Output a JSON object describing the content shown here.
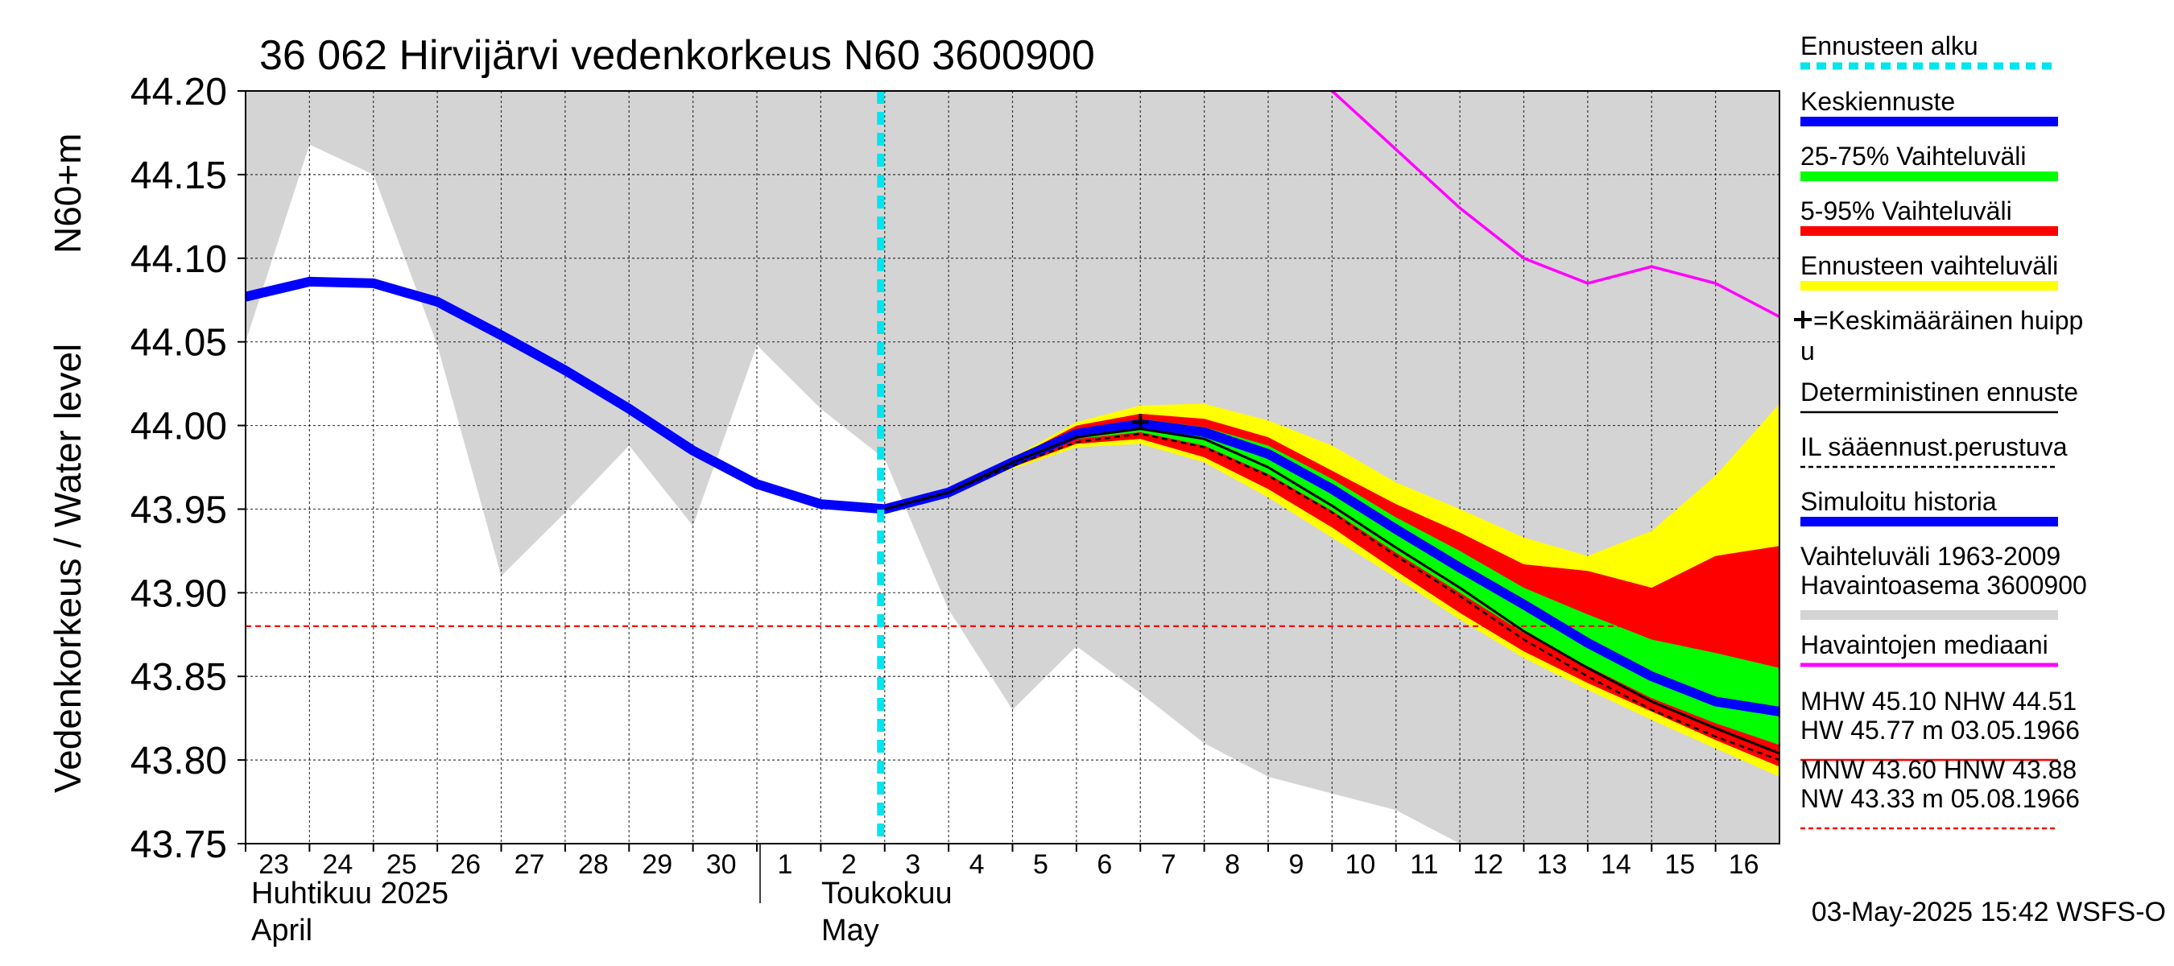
{
  "chart_data": {
    "type": "area",
    "title": "36 062 Hirvijärvi vedenkorkeus N60 3600900",
    "ylabel": "Vedenkorkeus / Water level",
    "yunit": "N60+m",
    "ylim": [
      43.75,
      44.2
    ],
    "y_ticks": [
      "44.20",
      "44.15",
      "44.10",
      "44.05",
      "44.00",
      "43.95",
      "43.90",
      "43.85",
      "43.80",
      "43.75"
    ],
    "x_ticks": [
      "23",
      "24",
      "25",
      "26",
      "27",
      "28",
      "29",
      "30",
      "1",
      "2",
      "3",
      "4",
      "5",
      "6",
      "7",
      "8",
      "9",
      "10",
      "11",
      "12",
      "13",
      "14",
      "15",
      "16"
    ],
    "month_labels": [
      {
        "fi": "Huhtikuu  2025",
        "en": "April"
      },
      {
        "fi": "Toukokuu",
        "en": "May"
      }
    ],
    "x": [
      "2025-04-23",
      "2025-04-24",
      "2025-04-25",
      "2025-04-26",
      "2025-04-27",
      "2025-04-28",
      "2025-04-29",
      "2025-04-30",
      "2025-05-01",
      "2025-05-02",
      "2025-05-03",
      "2025-05-04",
      "2025-05-05",
      "2025-05-06",
      "2025-05-07",
      "2025-05-08",
      "2025-05-09",
      "2025-05-10",
      "2025-05-11",
      "2025-05-12",
      "2025-05-13",
      "2025-05-14",
      "2025-05-15",
      "2025-05-16",
      "2025-05-17"
    ],
    "forecast_start": "2025-05-03",
    "historical_range": {
      "name": "Vaihteluväli 1963-2009 Havaintoasema 3600900",
      "color": "#d4d4d4",
      "upper": [
        44.2,
        44.2,
        44.2,
        44.2,
        44.2,
        44.2,
        44.2,
        44.2,
        44.2,
        44.2,
        44.2,
        44.2,
        44.2,
        44.2,
        44.2,
        44.2,
        44.2,
        44.2,
        44.2,
        44.2,
        44.2,
        44.2,
        44.2,
        44.2,
        44.2
      ],
      "lower": [
        44.05,
        44.168,
        44.15,
        44.048,
        43.91,
        43.948,
        43.988,
        43.94,
        44.048,
        44.01,
        43.98,
        43.89,
        43.83,
        43.868,
        43.84,
        43.81,
        43.79,
        43.78,
        43.77,
        43.75,
        43.75,
        43.75,
        43.75,
        43.75,
        43.75
      ]
    },
    "series": [
      {
        "name": "Simuloitu historia",
        "color": "#0000ff",
        "values": [
          44.077,
          44.086,
          44.085,
          44.074,
          44.054,
          44.033,
          44.01,
          43.985,
          43.965,
          43.953,
          43.95,
          43.96,
          43.978,
          43.995,
          44.001,
          43.996,
          43.983,
          43.962,
          43.938,
          43.915,
          43.893,
          43.87,
          43.85,
          43.835,
          43.829
        ]
      },
      {
        "name": "Keskiennuste",
        "color": "#0000ff",
        "values": [
          null,
          null,
          null,
          null,
          null,
          null,
          null,
          null,
          null,
          null,
          43.95,
          43.96,
          43.978,
          43.995,
          44.001,
          43.996,
          43.983,
          43.962,
          43.938,
          43.915,
          43.893,
          43.87,
          43.85,
          43.835,
          43.829
        ]
      },
      {
        "name": "Havaintojen mediaani",
        "color": "#ff00ff",
        "values": [
          null,
          null,
          null,
          null,
          null,
          null,
          null,
          null,
          null,
          null,
          null,
          null,
          null,
          null,
          null,
          null,
          null,
          44.2,
          44.165,
          44.13,
          44.1,
          44.085,
          44.095,
          44.085,
          44.065
        ]
      },
      {
        "name": "Deterministinen ennuste",
        "color": "#000000",
        "values": [
          null,
          null,
          null,
          null,
          null,
          null,
          null,
          null,
          null,
          null,
          43.95,
          43.96,
          43.978,
          43.993,
          43.998,
          43.992,
          43.975,
          43.952,
          43.927,
          43.903,
          43.877,
          43.855,
          43.835,
          43.819,
          43.804
        ]
      },
      {
        "name": "IL sääennust.perustuva",
        "color": "#000000",
        "dash": true,
        "values": [
          null,
          null,
          null,
          null,
          null,
          null,
          null,
          null,
          null,
          null,
          43.95,
          43.96,
          43.976,
          43.99,
          43.995,
          43.987,
          43.97,
          43.948,
          43.922,
          43.898,
          43.872,
          43.85,
          43.83,
          43.814,
          43.8
        ]
      }
    ],
    "bands": [
      {
        "name": "Ennusteen vaihteluväli",
        "color": "#ffff00",
        "upper": [
          null,
          null,
          null,
          null,
          null,
          null,
          null,
          null,
          null,
          null,
          43.95,
          43.961,
          43.981,
          44.002,
          44.012,
          44.013,
          44.003,
          43.988,
          43.966,
          43.95,
          43.933,
          43.922,
          43.937,
          43.97,
          44.013
        ],
        "lower": [
          null,
          null,
          null,
          null,
          null,
          null,
          null,
          null,
          null,
          null,
          43.95,
          43.959,
          43.974,
          43.987,
          43.989,
          43.978,
          43.957,
          43.933,
          43.909,
          43.884,
          43.861,
          43.842,
          43.824,
          43.807,
          43.79
        ]
      },
      {
        "name": "5-95% Vaihteluväli",
        "color": "#ff0000",
        "upper": [
          null,
          null,
          null,
          null,
          null,
          null,
          null,
          null,
          null,
          null,
          43.95,
          43.961,
          43.98,
          44.0,
          44.007,
          44.004,
          43.993,
          43.973,
          43.953,
          43.936,
          43.917,
          43.913,
          43.903,
          43.922,
          43.928
        ],
        "lower": [
          null,
          null,
          null,
          null,
          null,
          null,
          null,
          null,
          null,
          null,
          43.95,
          43.959,
          43.975,
          43.989,
          43.992,
          43.981,
          43.962,
          43.939,
          43.913,
          43.888,
          43.865,
          43.846,
          43.829,
          43.812,
          43.796
        ]
      },
      {
        "name": "25-75% Vaihteluväli",
        "color": "#00ff00",
        "upper": [
          null,
          null,
          null,
          null,
          null,
          null,
          null,
          null,
          null,
          null,
          43.95,
          43.96,
          43.979,
          43.997,
          44.004,
          43.999,
          43.988,
          43.968,
          43.945,
          43.925,
          43.903,
          43.887,
          43.872,
          43.864,
          43.855
        ],
        "lower": [
          null,
          null,
          null,
          null,
          null,
          null,
          null,
          null,
          null,
          null,
          43.95,
          43.959,
          43.976,
          43.992,
          43.996,
          43.988,
          43.971,
          43.949,
          43.924,
          43.9,
          43.876,
          43.856,
          43.837,
          43.822,
          43.809
        ]
      }
    ],
    "reference_lines": [
      {
        "name": "MNW 43.60 HNW 43.88",
        "value": 43.88,
        "color": "#ff0000",
        "dash": true
      }
    ],
    "legend": {
      "position": "right",
      "items": [
        {
          "label": "Ennusteen alku",
          "color": "#00e5ee",
          "style": "dashed-thick"
        },
        {
          "label": "Keskiennuste",
          "color": "#0000ff",
          "style": "thick"
        },
        {
          "label": "25-75% Vaihteluväli",
          "color": "#00ff00",
          "style": "thick"
        },
        {
          "label": "5-95% Vaihteluväli",
          "color": "#ff0000",
          "style": "thick"
        },
        {
          "label": "Ennusteen vaihteluväli",
          "color": "#ffff00",
          "style": "thick"
        },
        {
          "label": "=Keskimääräinen huipp",
          "label2": "u",
          "color": "#000000",
          "style": "plus"
        },
        {
          "label": "Deterministinen ennuste",
          "color": "#000000",
          "style": "thin"
        },
        {
          "label": "IL sääennust.perustuva",
          "color": "#000000",
          "style": "dashed-thin"
        },
        {
          "label": "Simuloitu historia",
          "color": "#0000ff",
          "style": "thick"
        },
        {
          "label": "Vaihteluväli 1963-2009",
          "label2": " Havaintoasema 3600900",
          "color": "#d4d4d4",
          "style": "thick"
        },
        {
          "label": "Havaintojen mediaani",
          "color": "#ff00ff",
          "style": "medium"
        },
        {
          "label": "MHW  45.10 NHW  44.51",
          "label2": "HW  45.77 m 03.05.1966",
          "color": "#ff0000",
          "style": "thin"
        },
        {
          "label": "MNW  43.60 HNW  43.88",
          "label2": "NW  43.33 m 05.08.1966",
          "color": "#ff0000",
          "style": "dashed-thin"
        }
      ]
    },
    "peak_marker": {
      "x": "2025-05-07",
      "y": 44.002
    },
    "grid": true,
    "footer": "03-May-2025 15:42 WSFS-O"
  }
}
